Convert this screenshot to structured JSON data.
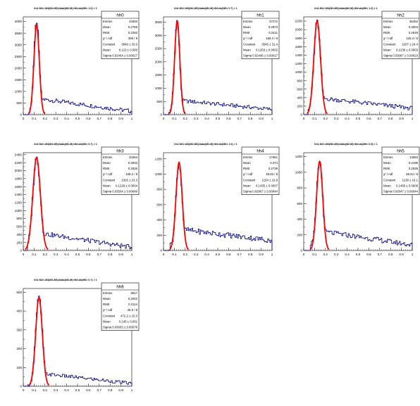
{
  "panels": [
    {
      "hist_title": "hh0",
      "plot_title": "hh1:M2>-M4(M2-M6)/4abs(M2-M)<M4:dn(M6> 1.0) > 1",
      "stats": [
        [
          "Entries",
          "44600"
        ],
        [
          "Mean",
          "0.2755"
        ],
        [
          "RMS",
          "0.2283"
        ],
        [
          "χ² / ndf",
          "369 / 8"
        ],
        [
          "Constant",
          "3849 ± 33.0"
        ],
        [
          "Mean",
          "0.123 ± 0.000"
        ],
        [
          "Sigma",
          "0.02464 ± 0.00017"
        ]
      ],
      "chart_data": {
        "type": "histogram",
        "xlim": [
          0,
          1
        ],
        "ylim": [
          0,
          4200
        ],
        "xticks": [
          "0",
          "0.1",
          "0.2",
          "0.3",
          "0.4",
          "0.5",
          "0.6",
          "0.7",
          "0.8",
          "0.9",
          "1"
        ],
        "yticks": [
          0,
          500,
          1000,
          1500,
          2000,
          2500,
          3000,
          3500,
          4000
        ],
        "peak": 4000,
        "mean": 0.123,
        "sigma": 0.0246,
        "tail_start": 700,
        "tail_end": 150,
        "fit": {
          "constant": 3849,
          "mean": 0.123,
          "sigma": 0.02464
        }
      }
    },
    {
      "hist_title": "hh1",
      "plot_title": "hh1:M2>-M4(M2-M6)/4abs(M2-M)<M4:dn(M6> 0.7) > 1",
      "stats": [
        [
          "Entries",
          "37272"
        ],
        [
          "Mean",
          "0.2873"
        ],
        [
          "RMS",
          "0.2411"
        ],
        [
          "χ² / ndf",
          "169.4 / 8"
        ],
        [
          "Constant",
          "3545 ± 31.4"
        ],
        [
          "Mean",
          "0.1263 ± 0.0002"
        ],
        [
          "Sigma",
          "0.02406 ± 0.00017"
        ]
      ],
      "chart_data": {
        "type": "histogram",
        "xlim": [
          0,
          1
        ],
        "ylim": [
          0,
          3700
        ],
        "xticks": [
          "0",
          "0.1",
          "0.2",
          "0.3",
          "0.4",
          "0.5",
          "0.6",
          "0.7",
          "0.8",
          "0.9",
          "1"
        ],
        "yticks": [
          0,
          500,
          1000,
          1500,
          2000,
          2500,
          3000,
          3500
        ],
        "peak": 3550,
        "mean": 0.126,
        "sigma": 0.0241,
        "tail_start": 550,
        "tail_end": 200,
        "fit": {
          "constant": 3545,
          "mean": 0.1263,
          "sigma": 0.02406
        }
      }
    },
    {
      "hist_title": "hh2",
      "plot_title": "hh1:M2>-M4(M2-M6)/4abs(M2-M)<M4:dn(M6> 1.0) > 1",
      "stats": [
        [
          "Entries",
          "36452"
        ],
        [
          "Mean",
          "0.3004"
        ],
        [
          "RMS",
          "0.2549"
        ],
        [
          "χ² / ndf",
          "125.3 / 8"
        ],
        [
          "Constant",
          "2207 ± 24.4"
        ],
        [
          "Mean",
          "0.1238 ± 0.0003"
        ],
        [
          "Sigma",
          "0.03087 ± 0.00023"
        ]
      ],
      "chart_data": {
        "type": "histogram",
        "xlim": [
          0,
          1
        ],
        "ylim": [
          0,
          2300
        ],
        "xticks": [
          "0",
          "0.1",
          "0.2",
          "0.3",
          "0.4",
          "0.5",
          "0.6",
          "0.7",
          "0.8",
          "0.9",
          "1"
        ],
        "yticks": [
          0,
          200,
          400,
          600,
          800,
          1000,
          1200,
          1400,
          1600,
          1800,
          2000,
          2200
        ],
        "peak": 2200,
        "mean": 0.124,
        "sigma": 0.0309,
        "tail_start": 400,
        "tail_end": 150,
        "fit": {
          "constant": 2207,
          "mean": 0.1238,
          "sigma": 0.03087
        }
      }
    },
    {
      "hist_title": "hh3",
      "plot_title": "hh1:M2>-M4(M2-M6)/4abs(M2-M)<M4:dn(M6> 0.7) > 1",
      "stats": [
        [
          "Entries",
          "34264"
        ],
        [
          "Mean",
          "0.2933"
        ],
        [
          "RMS",
          "0.2526"
        ],
        [
          "χ² / ndf",
          "108.2 / 8"
        ],
        [
          "Constant",
          "2326 ± 23.3"
        ],
        [
          "Mean",
          "0.1229 ± 0.0004"
        ],
        [
          "Sigma",
          "0.03504 ± 0.00049"
        ]
      ],
      "chart_data": {
        "type": "histogram",
        "xlim": [
          0,
          1
        ],
        "ylim": [
          0,
          2450
        ],
        "xticks": [
          "0",
          "0.1",
          "0.2",
          "0.3",
          "0.4",
          "0.5",
          "0.6",
          "0.7",
          "0.8",
          "0.9",
          "1"
        ],
        "yticks": [
          0,
          200,
          400,
          600,
          800,
          1000,
          1200,
          1400,
          1600,
          1800,
          2000,
          2200,
          2400
        ],
        "peak": 2330,
        "mean": 0.123,
        "sigma": 0.035,
        "tail_start": 450,
        "tail_end": 80,
        "fit": {
          "constant": 2326,
          "mean": 0.1229,
          "sigma": 0.03504
        }
      }
    },
    {
      "hist_title": "hh4",
      "plot_title": "hh1:M2>-M4(M2-M6)/4abs(M2-M)<M4:dn(M6> 1.0) > 1",
      "stats": [
        [
          "Entries",
          "17961"
        ],
        [
          "Mean",
          "0.374"
        ],
        [
          "RMS",
          "0.2739"
        ],
        [
          "χ² / ndf",
          "45.83 / 8"
        ],
        [
          "Constant",
          "1154 ± 19.8"
        ],
        [
          "Mean",
          "0.1435 ± 0.0007"
        ],
        [
          "Sigma",
          "0.02867 ± 0.00044"
        ]
      ],
      "chart_data": {
        "type": "histogram",
        "xlim": [
          0,
          1
        ],
        "ylim": [
          0,
          1280
        ],
        "xticks": [
          "0",
          "0.1",
          "0.2",
          "0.3",
          "0.4",
          "0.5",
          "0.6",
          "0.7",
          "0.8",
          "0.9",
          "1"
        ],
        "yticks": [
          0,
          200,
          400,
          600,
          800,
          1000,
          1200
        ],
        "peak": 1150,
        "mean": 0.1435,
        "sigma": 0.0287,
        "tail_start": 280,
        "tail_end": 130,
        "fit": {
          "constant": 1154,
          "mean": 0.1435,
          "sigma": 0.02867
        }
      }
    },
    {
      "hist_title": "hh5",
      "plot_title": "hh1:M2>-M4(M2-M6)/4abs(M2-M)<M4:dn(M6> 0.5) > 1",
      "stats": [
        [
          "Entries",
          "13563"
        ],
        [
          "Mean",
          "0.3199"
        ],
        [
          "RMS",
          "0.2535"
        ],
        [
          "χ² / ndf",
          "59.54 / 8"
        ],
        [
          "Constant",
          "1139 ± 16.1"
        ],
        [
          "Mean",
          "0.1466 ± 0.0006"
        ],
        [
          "Sigma",
          "0.02847 ± 0.00044"
        ]
      ],
      "chart_data": {
        "type": "histogram",
        "xlim": [
          0,
          1
        ],
        "ylim": [
          0,
          1250
        ],
        "xticks": [
          "0",
          "0.1",
          "0.2",
          "0.3",
          "0.4",
          "0.5",
          "0.6",
          "0.7",
          "0.8",
          "0.9",
          "1"
        ],
        "yticks": [
          0,
          200,
          400,
          600,
          800,
          1000,
          1200
        ],
        "peak": 1140,
        "mean": 0.1466,
        "sigma": 0.0285,
        "tail_start": 250,
        "tail_end": 70,
        "fit": {
          "constant": 1139,
          "mean": 0.1466,
          "sigma": 0.02847
        }
      }
    },
    {
      "hist_title": "hh6",
      "plot_title": "hh1:M2>-M4(M2-M6)/4abs(M2-M)<M4:dn(M6> 0.7) > 1",
      "stats": [
        [
          "Entries",
          "5917"
        ],
        [
          "Mean",
          "0.2642"
        ],
        [
          "RMS",
          "0.2114"
        ],
        [
          "χ² / ndf",
          "46.5 / 8"
        ],
        [
          "Constant",
          "472.2 ± 10.3"
        ],
        [
          "Mean",
          "0.145 ± 0.001"
        ],
        [
          "Sigma",
          "0.03063 ± 0.00078"
        ]
      ],
      "chart_data": {
        "type": "histogram",
        "xlim": [
          0,
          1
        ],
        "ylim": [
          0,
          520
        ],
        "xticks": [
          "0",
          "0.1",
          "0.2",
          "0.3",
          "0.4",
          "0.5",
          "0.6",
          "0.7",
          "0.8",
          "0.9",
          "1"
        ],
        "yticks": [
          0,
          100,
          200,
          300,
          400,
          500
        ],
        "peak": 480,
        "mean": 0.145,
        "sigma": 0.0306,
        "tail_start": 70,
        "tail_end": 15,
        "fit": {
          "constant": 472.2,
          "mean": 0.145,
          "sigma": 0.03063
        }
      }
    }
  ],
  "colors": {
    "histogram": "#000080",
    "fit": "#ff0000",
    "axis": "#000000",
    "stats_border": "#000000"
  }
}
